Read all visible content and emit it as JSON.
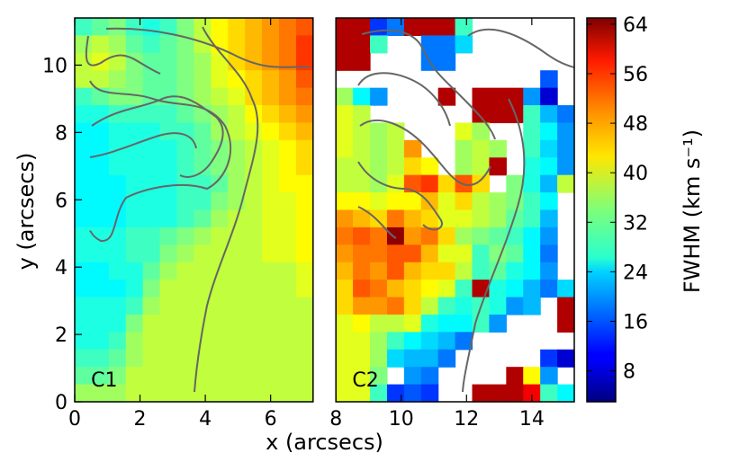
{
  "chart_data": {
    "type": "heatmap",
    "xlabel": "x (arcsecs)",
    "ylabel": "y (arcsecs)",
    "colorbar_label": "FWHM (km s⁻¹)",
    "xlim": [
      0,
      15.3
    ],
    "ylim": [
      0,
      11.4
    ],
    "colorbar_range": [
      3,
      65
    ],
    "x_ticks": [
      0,
      2,
      4,
      6,
      8,
      10,
      12,
      14
    ],
    "y_ticks": [
      0,
      2,
      4,
      6,
      8,
      10
    ],
    "colorbar_ticks": [
      8,
      16,
      24,
      32,
      40,
      48,
      56,
      64
    ],
    "colormap": "jet",
    "panels": [
      {
        "name": "C1",
        "x_range": [
          0,
          7.3
        ],
        "y_range": [
          0,
          11.4
        ],
        "approx_fwhm_grid_top_to_bottom": [
          [
            30,
            32,
            34,
            30,
            28,
            30,
            34,
            38,
            42,
            44,
            46,
            48,
            50,
            52
          ],
          [
            36,
            38,
            36,
            32,
            30,
            32,
            34,
            38,
            42,
            44,
            46,
            48,
            50,
            54
          ],
          [
            38,
            40,
            38,
            34,
            32,
            32,
            34,
            36,
            40,
            44,
            46,
            48,
            50,
            54
          ],
          [
            38,
            38,
            36,
            34,
            32,
            32,
            34,
            36,
            40,
            42,
            44,
            46,
            48,
            52
          ],
          [
            30,
            32,
            34,
            34,
            32,
            32,
            34,
            36,
            38,
            40,
            44,
            46,
            48,
            50
          ],
          [
            28,
            28,
            30,
            30,
            30,
            30,
            32,
            34,
            36,
            38,
            42,
            44,
            46,
            48
          ],
          [
            26,
            26,
            28,
            28,
            28,
            30,
            30,
            32,
            36,
            38,
            40,
            42,
            44,
            46
          ],
          [
            26,
            26,
            28,
            28,
            28,
            28,
            30,
            32,
            34,
            36,
            38,
            40,
            42,
            44
          ],
          [
            26,
            26,
            28,
            28,
            28,
            28,
            30,
            32,
            34,
            36,
            38,
            40,
            42,
            44
          ],
          [
            26,
            26,
            26,
            28,
            28,
            28,
            30,
            30,
            32,
            36,
            38,
            40,
            42,
            42
          ],
          [
            26,
            26,
            26,
            28,
            28,
            28,
            30,
            30,
            34,
            36,
            38,
            40,
            40,
            42
          ],
          [
            26,
            26,
            26,
            28,
            28,
            28,
            30,
            32,
            36,
            38,
            38,
            40,
            40,
            42
          ],
          [
            28,
            28,
            28,
            30,
            30,
            32,
            34,
            36,
            38,
            38,
            38,
            40,
            40,
            42
          ],
          [
            28,
            28,
            28,
            30,
            30,
            34,
            36,
            38,
            38,
            38,
            38,
            40,
            40,
            42
          ],
          [
            26,
            26,
            28,
            28,
            32,
            36,
            38,
            38,
            38,
            38,
            38,
            38,
            38,
            40
          ],
          [
            26,
            26,
            26,
            28,
            34,
            38,
            38,
            38,
            38,
            38,
            38,
            38,
            38,
            40
          ],
          [
            28,
            28,
            28,
            30,
            36,
            38,
            38,
            38,
            38,
            38,
            38,
            38,
            38,
            38
          ],
          [
            28,
            28,
            28,
            34,
            38,
            38,
            38,
            38,
            38,
            38,
            38,
            38,
            38,
            38
          ],
          [
            28,
            28,
            30,
            36,
            38,
            38,
            38,
            38,
            38,
            38,
            38,
            38,
            38,
            38
          ],
          [
            30,
            30,
            32,
            36,
            38,
            38,
            38,
            38,
            38,
            38,
            38,
            38,
            38,
            38
          ],
          [
            32,
            32,
            34,
            38,
            38,
            38,
            38,
            38,
            38,
            38,
            38,
            38,
            38,
            38
          ],
          [
            36,
            36,
            36,
            38,
            38,
            38,
            38,
            38,
            38,
            38,
            38,
            38,
            38,
            38
          ]
        ]
      },
      {
        "name": "C2",
        "x_range": [
          8.0,
          15.3
        ],
        "y_range": [
          0,
          11.4
        ],
        "approx_fwhm_grid_top_to_bottom": [
          [
            62,
            62,
            14,
            18,
            62,
            62,
            62,
            30,
            null,
            null,
            null,
            null,
            null,
            null
          ],
          [
            62,
            62,
            30,
            null,
            null,
            18,
            18,
            24,
            null,
            null,
            null,
            null,
            null,
            null
          ],
          [
            62,
            62,
            null,
            null,
            null,
            18,
            18,
            null,
            null,
            null,
            null,
            null,
            null,
            null
          ],
          [
            null,
            null,
            null,
            null,
            null,
            null,
            null,
            null,
            null,
            null,
            null,
            null,
            16,
            null
          ],
          [
            36,
            26,
            20,
            null,
            null,
            null,
            62,
            null,
            62,
            62,
            62,
            20,
            8,
            null
          ],
          [
            40,
            38,
            null,
            null,
            null,
            null,
            null,
            null,
            62,
            62,
            62,
            30,
            22,
            18
          ],
          [
            40,
            38,
            36,
            38,
            null,
            null,
            null,
            40,
            36,
            null,
            null,
            30,
            26,
            20
          ],
          [
            40,
            38,
            36,
            38,
            48,
            null,
            null,
            36,
            38,
            36,
            null,
            30,
            24,
            20
          ],
          [
            38,
            38,
            36,
            38,
            44,
            42,
            null,
            36,
            38,
            62,
            null,
            28,
            26,
            20
          ],
          [
            38,
            38,
            36,
            40,
            52,
            54,
            44,
            52,
            44,
            null,
            34,
            28,
            22,
            38
          ],
          [
            42,
            42,
            40,
            42,
            42,
            46,
            40,
            44,
            38,
            36,
            34,
            30,
            26,
            null
          ],
          [
            48,
            46,
            44,
            50,
            46,
            44,
            40,
            40,
            38,
            36,
            32,
            30,
            22,
            null
          ],
          [
            50,
            52,
            50,
            64,
            48,
            50,
            44,
            36,
            34,
            32,
            30,
            26,
            20,
            null
          ],
          [
            48,
            50,
            50,
            52,
            52,
            46,
            40,
            40,
            30,
            34,
            32,
            26,
            18,
            null
          ],
          [
            46,
            50,
            48,
            52,
            46,
            44,
            44,
            38,
            30,
            32,
            28,
            26,
            20,
            null
          ],
          [
            44,
            52,
            50,
            46,
            44,
            42,
            40,
            30,
            62,
            28,
            26,
            22,
            18,
            24
          ],
          [
            44,
            48,
            48,
            50,
            44,
            38,
            30,
            28,
            30,
            28,
            20,
            22,
            null,
            62
          ],
          [
            40,
            42,
            38,
            38,
            40,
            28,
            26,
            26,
            30,
            20,
            null,
            null,
            null,
            62
          ],
          [
            40,
            40,
            36,
            30,
            26,
            24,
            22,
            18,
            null,
            null,
            null,
            null,
            null,
            null
          ],
          [
            40,
            40,
            36,
            24,
            22,
            22,
            18,
            null,
            null,
            null,
            null,
            null,
            14,
            8
          ],
          [
            40,
            40,
            34,
            null,
            20,
            18,
            null,
            null,
            null,
            null,
            62,
            42,
            20,
            null
          ],
          [
            40,
            40,
            30,
            14,
            16,
            14,
            null,
            null,
            62,
            62,
            62,
            58,
            30,
            26
          ]
        ]
      }
    ]
  }
}
